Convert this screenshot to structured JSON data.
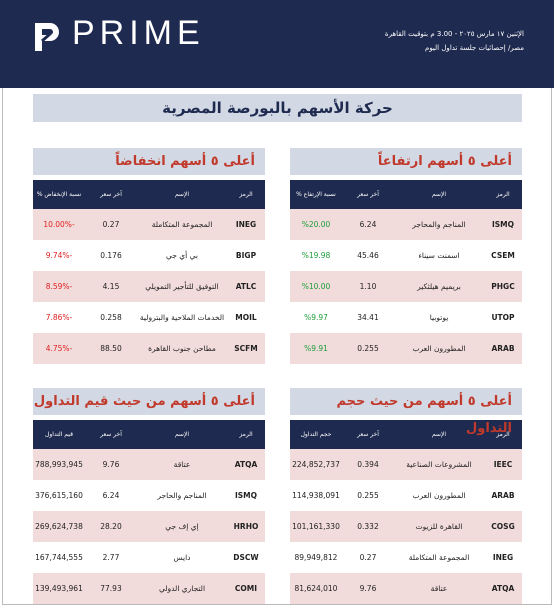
{
  "header": {
    "logo": "PRIME",
    "date": "الإثنين ١٧ مارس ٢٠٢٥ - 3.00 م بتوقيت القاهرة",
    "subtitle": "مصر/ إحصائيات جلسة تداول اليوم"
  },
  "title": "حركة الأسهم بالبورصة المصرية",
  "tables": [
    {
      "title": "أعلى ٥ أسهم ارتفاعاً",
      "columns": [
        "الرمز",
        "الإسم",
        "آخر سعر",
        "نسبة الإرتفاع %"
      ],
      "rows": [
        [
          "ISMQ",
          "المناجم والمحاجر",
          "6.24",
          "%20.00"
        ],
        [
          "CSEM",
          "اسمنت سيناء",
          "45.46",
          "%19.98"
        ],
        [
          "PHGC",
          "بريميم هيلثكير",
          "1.10",
          "%10.00"
        ],
        [
          "UTOP",
          "يوتوبيا",
          "34.41",
          "%9.97"
        ],
        [
          "ARAB",
          "المطورون العرب",
          "0.255",
          "%9.91"
        ]
      ]
    },
    {
      "title": "أعلى ٥ أسهم انخفاضاً",
      "columns": [
        "الرمز",
        "الإسم",
        "آخر سعر",
        "نسبة الإنخفاض %"
      ],
      "rows": [
        [
          "INEG",
          "المجموعة المتكاملة",
          "0.27",
          "-10.00%"
        ],
        [
          "BIGP",
          "بي أي جي",
          "0.176",
          "-9.74%"
        ],
        [
          "ATLC",
          "التوفيق للتأجير التمويلي",
          "4.15",
          "-8.59%"
        ],
        [
          "MOIL",
          "الخدمات الملاحية والبترولية",
          "0.258",
          "-7.86%"
        ],
        [
          "SCFM",
          "مطاحن جنوب القاهرة",
          "88.50",
          "-4.75%"
        ]
      ]
    },
    {
      "title": "أعلى ٥ أسهم من حيث حجم التداول",
      "columns": [
        "الرمز",
        "الإسم",
        "آخر سعر",
        "حجم التداول"
      ],
      "rows": [
        [
          "IEEC",
          "المشروعات الصناعية",
          "0.394",
          "224,852,737"
        ],
        [
          "ARAB",
          "المطورون العرب",
          "0.255",
          "114,938,091"
        ],
        [
          "COSG",
          "القاهرة للزيوت",
          "0.332",
          "101,161,330"
        ],
        [
          "INEG",
          "المجموعة المتكاملة",
          "0.27",
          "89,949,812"
        ],
        [
          "ATQA",
          "عتاقة",
          "9.76",
          "81,624,010"
        ]
      ]
    },
    {
      "title": "أعلى ٥ أسهم من حيث قيم التداول",
      "columns": [
        "الرمز",
        "الإسم",
        "آخر سعر",
        "قيم التداول"
      ],
      "rows": [
        [
          "ATQA",
          "عتاقة",
          "9.76",
          "788,993,945"
        ],
        [
          "ISMQ",
          "المناجم والحاجر",
          "6.24",
          "376,615,160"
        ],
        [
          "HRHO",
          "إي إف جي",
          "28.20",
          "269,624,738"
        ],
        [
          "DSCW",
          "دايس",
          "2.77",
          "167,744,555"
        ],
        [
          "COMI",
          "التجاري الدولي",
          "77.93",
          "139,493,961"
        ]
      ]
    }
  ]
}
